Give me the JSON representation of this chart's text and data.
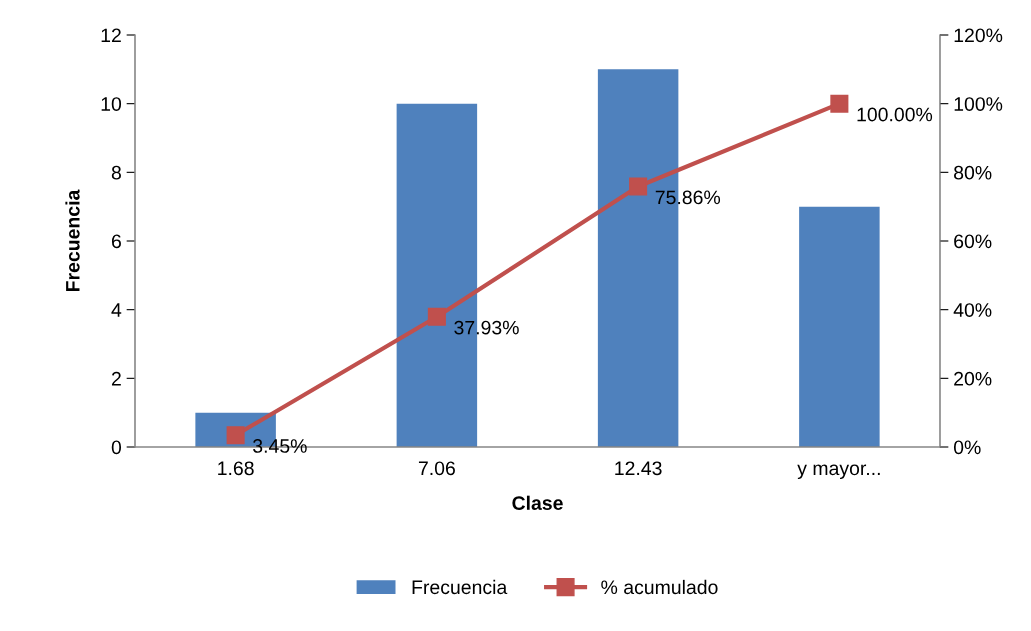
{
  "chart_data": {
    "type": "bar",
    "xlabel": "Clase",
    "ylabel": "Frecuencia",
    "categories": [
      "1.68",
      "7.06",
      "12.43",
      "y mayor..."
    ],
    "series": [
      {
        "name": "Frecuencia",
        "color": "#4f81bd",
        "values": [
          1,
          10,
          11,
          7
        ]
      },
      {
        "name": "% acumulado",
        "type": "line",
        "axis": "y2",
        "color": "#c0504d",
        "marker": "square",
        "values": [
          3.45,
          37.93,
          75.86,
          100
        ],
        "value_labels": [
          "3.45%",
          "37.93%",
          "75.86%",
          "100.00%"
        ]
      }
    ],
    "ylim": [
      0,
      12
    ],
    "yticks": [
      0,
      2,
      4,
      6,
      8,
      10,
      12
    ],
    "y2lim": [
      0,
      120
    ],
    "y2ticks": [
      {
        "value": 0,
        "label": "0%"
      },
      {
        "value": 20,
        "label": "20%"
      },
      {
        "value": 40,
        "label": "40%"
      },
      {
        "value": 60,
        "label": "60%"
      },
      {
        "value": 80,
        "label": "80%"
      },
      {
        "value": 100,
        "label": "100%"
      },
      {
        "value": 120,
        "label": "120%"
      }
    ],
    "grid": false,
    "legend": "bottom"
  }
}
